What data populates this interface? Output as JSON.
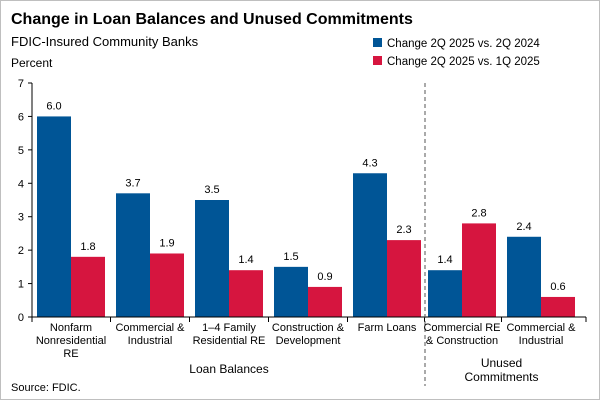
{
  "chart_data": {
    "type": "bar",
    "title": "Change in Loan Balances and Unused Commitments",
    "subtitle": "FDIC-Insured Community Banks",
    "unit_label": "Percent",
    "source": "Source: FDIC.",
    "ylim": [
      0,
      7
    ],
    "yticks": [
      "0",
      "1",
      "2",
      "3",
      "4",
      "5",
      "6",
      "7"
    ],
    "grid": false,
    "legend_position": "top-right",
    "categories": [
      [
        "Nonfarm",
        "Nonresidential",
        "RE"
      ],
      [
        "Commercial &",
        "Industrial"
      ],
      [
        "1–4 Family",
        "Residential RE"
      ],
      [
        "Construction &",
        "Development"
      ],
      [
        "Farm Loans"
      ],
      [
        "Commercial RE",
        "& Construction"
      ],
      [
        "Commercial &",
        "Industrial"
      ]
    ],
    "groups": [
      {
        "label": [
          "Loan Balances"
        ],
        "categories": [
          0,
          1,
          2,
          3,
          4
        ]
      },
      {
        "label": [
          "Unused",
          "Commitments"
        ],
        "categories": [
          5,
          6
        ]
      }
    ],
    "series": [
      {
        "name": "Change 2Q 2025 vs. 2Q 2024",
        "color": "#005596",
        "values": [
          6.0,
          3.7,
          3.5,
          1.5,
          4.3,
          1.4,
          2.4
        ],
        "labels": [
          "6.0",
          "3.7",
          "3.5",
          "1.5",
          "4.3",
          "1.4",
          "2.4"
        ]
      },
      {
        "name": "Change 2Q 2025 vs. 1Q 2025",
        "color": "#d6153f",
        "values": [
          1.8,
          1.9,
          1.4,
          0.9,
          2.3,
          2.8,
          0.6
        ],
        "labels": [
          "1.8",
          "1.9",
          "1.4",
          "0.9",
          "2.3",
          "2.8",
          "0.6"
        ]
      }
    ]
  }
}
